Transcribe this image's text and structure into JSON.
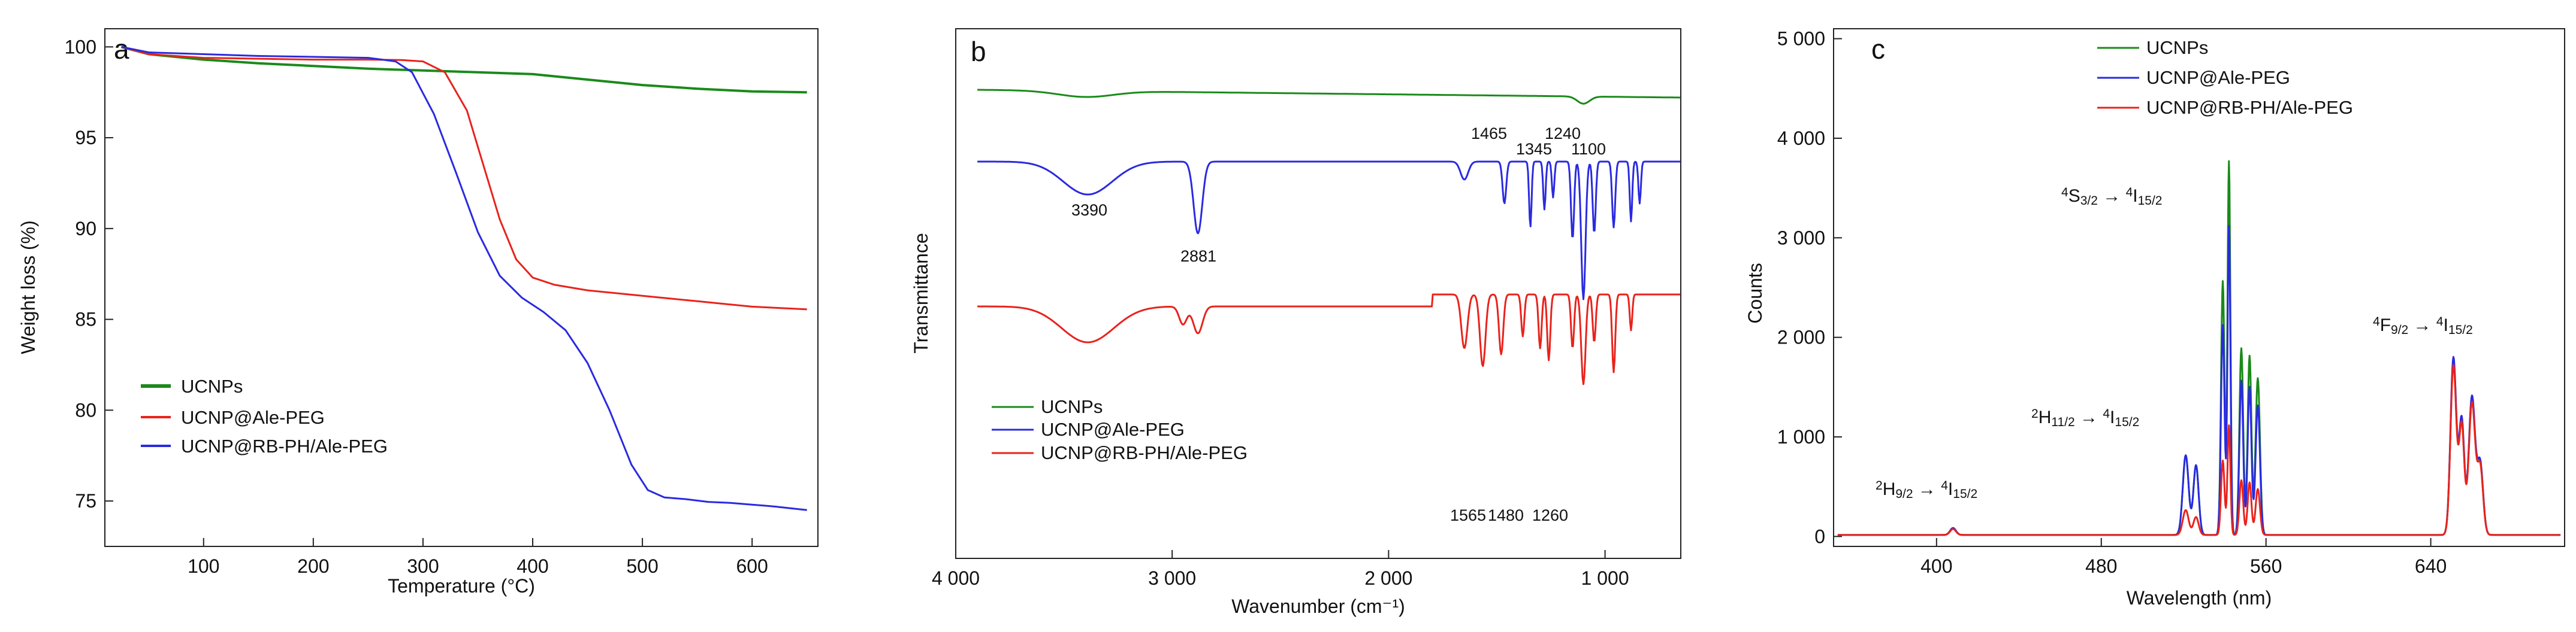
{
  "chart_data": [
    {
      "panel_label": "a",
      "type": "line",
      "xlabel": "Temperature (°C)",
      "ylabel": "Weight loss (%)",
      "xlim": [
        10,
        660
      ],
      "ylim": [
        72.5,
        101
      ],
      "xticks": [
        100,
        200,
        300,
        400,
        500,
        600
      ],
      "yticks": [
        75,
        80,
        85,
        90,
        95,
        100
      ],
      "legend_position": "bottom-left",
      "series": [
        {
          "name": "UCNPs",
          "color": "#1a8a1a",
          "x": [
            25,
            50,
            100,
            150,
            200,
            250,
            300,
            350,
            400,
            450,
            500,
            550,
            600,
            650
          ],
          "y": [
            100,
            99.6,
            99.3,
            99.1,
            98.95,
            98.8,
            98.7,
            98.6,
            98.5,
            98.2,
            97.9,
            97.7,
            97.55,
            97.5
          ]
        },
        {
          "name": "UCNP@Ale-PEG",
          "color": "#e8231c",
          "x": [
            25,
            50,
            100,
            150,
            200,
            250,
            280,
            300,
            320,
            340,
            355,
            370,
            385,
            400,
            420,
            450,
            500,
            550,
            600,
            650
          ],
          "y": [
            100,
            99.6,
            99.4,
            99.35,
            99.3,
            99.3,
            99.28,
            99.2,
            98.6,
            96.5,
            93.5,
            90.5,
            88.3,
            87.3,
            86.9,
            86.6,
            86.3,
            86.0,
            85.7,
            85.55
          ]
        },
        {
          "name": "UCNP@RB-PH/Ale-PEG",
          "color": "#2a2ae0",
          "x": [
            25,
            50,
            100,
            150,
            200,
            250,
            275,
            290,
            310,
            330,
            350,
            370,
            390,
            410,
            430,
            450,
            470,
            490,
            505,
            520,
            540,
            560,
            580,
            600,
            620,
            650
          ],
          "y": [
            100,
            99.7,
            99.6,
            99.5,
            99.45,
            99.4,
            99.2,
            98.6,
            96.3,
            93.1,
            89.8,
            87.4,
            86.2,
            85.4,
            84.4,
            82.6,
            80.0,
            77.0,
            75.6,
            75.2,
            75.1,
            74.95,
            74.9,
            74.8,
            74.7,
            74.5
          ]
        }
      ]
    },
    {
      "panel_label": "b",
      "type": "line",
      "xlabel": "Wavenumber (cm⁻¹)",
      "ylabel": "Transmittance",
      "xlim": [
        4000,
        650
      ],
      "xticks": [
        4000,
        3000,
        2000,
        1000
      ],
      "xticklabels": [
        "4 000",
        "3 000",
        "2 000",
        "1 000"
      ],
      "yticks": [],
      "legend_position": "bottom-left",
      "annotations": [
        "1465",
        "1240",
        "1345",
        "1100",
        "3390",
        "2881",
        "1565",
        "1480",
        "1260"
      ],
      "series": [
        {
          "name": "UCNPs",
          "color": "#1a8a1a"
        },
        {
          "name": "UCNP@Ale-PEG",
          "color": "#2a2ae0"
        },
        {
          "name": "UCNP@RB-PH/Ale-PEG",
          "color": "#e8231c"
        }
      ]
    },
    {
      "panel_label": "c",
      "type": "line",
      "xlabel": "Wavelength (nm)",
      "ylabel": "Counts",
      "xlim": [
        350,
        705
      ],
      "ylim": [
        -100,
        5100
      ],
      "xticks": [
        400,
        480,
        560,
        640
      ],
      "yticks": [
        0,
        1000,
        2000,
        3000,
        4000,
        5000
      ],
      "yticklabels": [
        "0",
        "1 000",
        "2 000",
        "3 000",
        "4 000",
        "5 000"
      ],
      "legend_position": "top-right",
      "series": [
        {
          "name": "UCNPs",
          "color": "#1a8a1a",
          "peak_545": 3750,
          "peak_655": 1750
        },
        {
          "name": "UCNP@Ale-PEG",
          "color": "#2a2ae0",
          "peak_545": 3100,
          "peak_655": 1780
        },
        {
          "name": "UCNP@RB-PH/Ale-PEG",
          "color": "#e8231c",
          "peak_545": 1100,
          "peak_655": 1700
        }
      ],
      "transitions": [
        {
          "upper": "2",
          "u": "H",
          "us": "9/2",
          "lower": "4",
          "l": "I",
          "ls": "15/2"
        },
        {
          "upper": "2",
          "u": "H",
          "us": "11/2",
          "lower": "4",
          "l": "I",
          "ls": "15/2"
        },
        {
          "upper": "4",
          "u": "S",
          "us": "3/2",
          "lower": "4",
          "l": "I",
          "ls": "15/2"
        },
        {
          "upper": "4",
          "u": "F",
          "us": "9/2",
          "lower": "4",
          "l": "I",
          "ls": "15/2"
        }
      ]
    }
  ]
}
